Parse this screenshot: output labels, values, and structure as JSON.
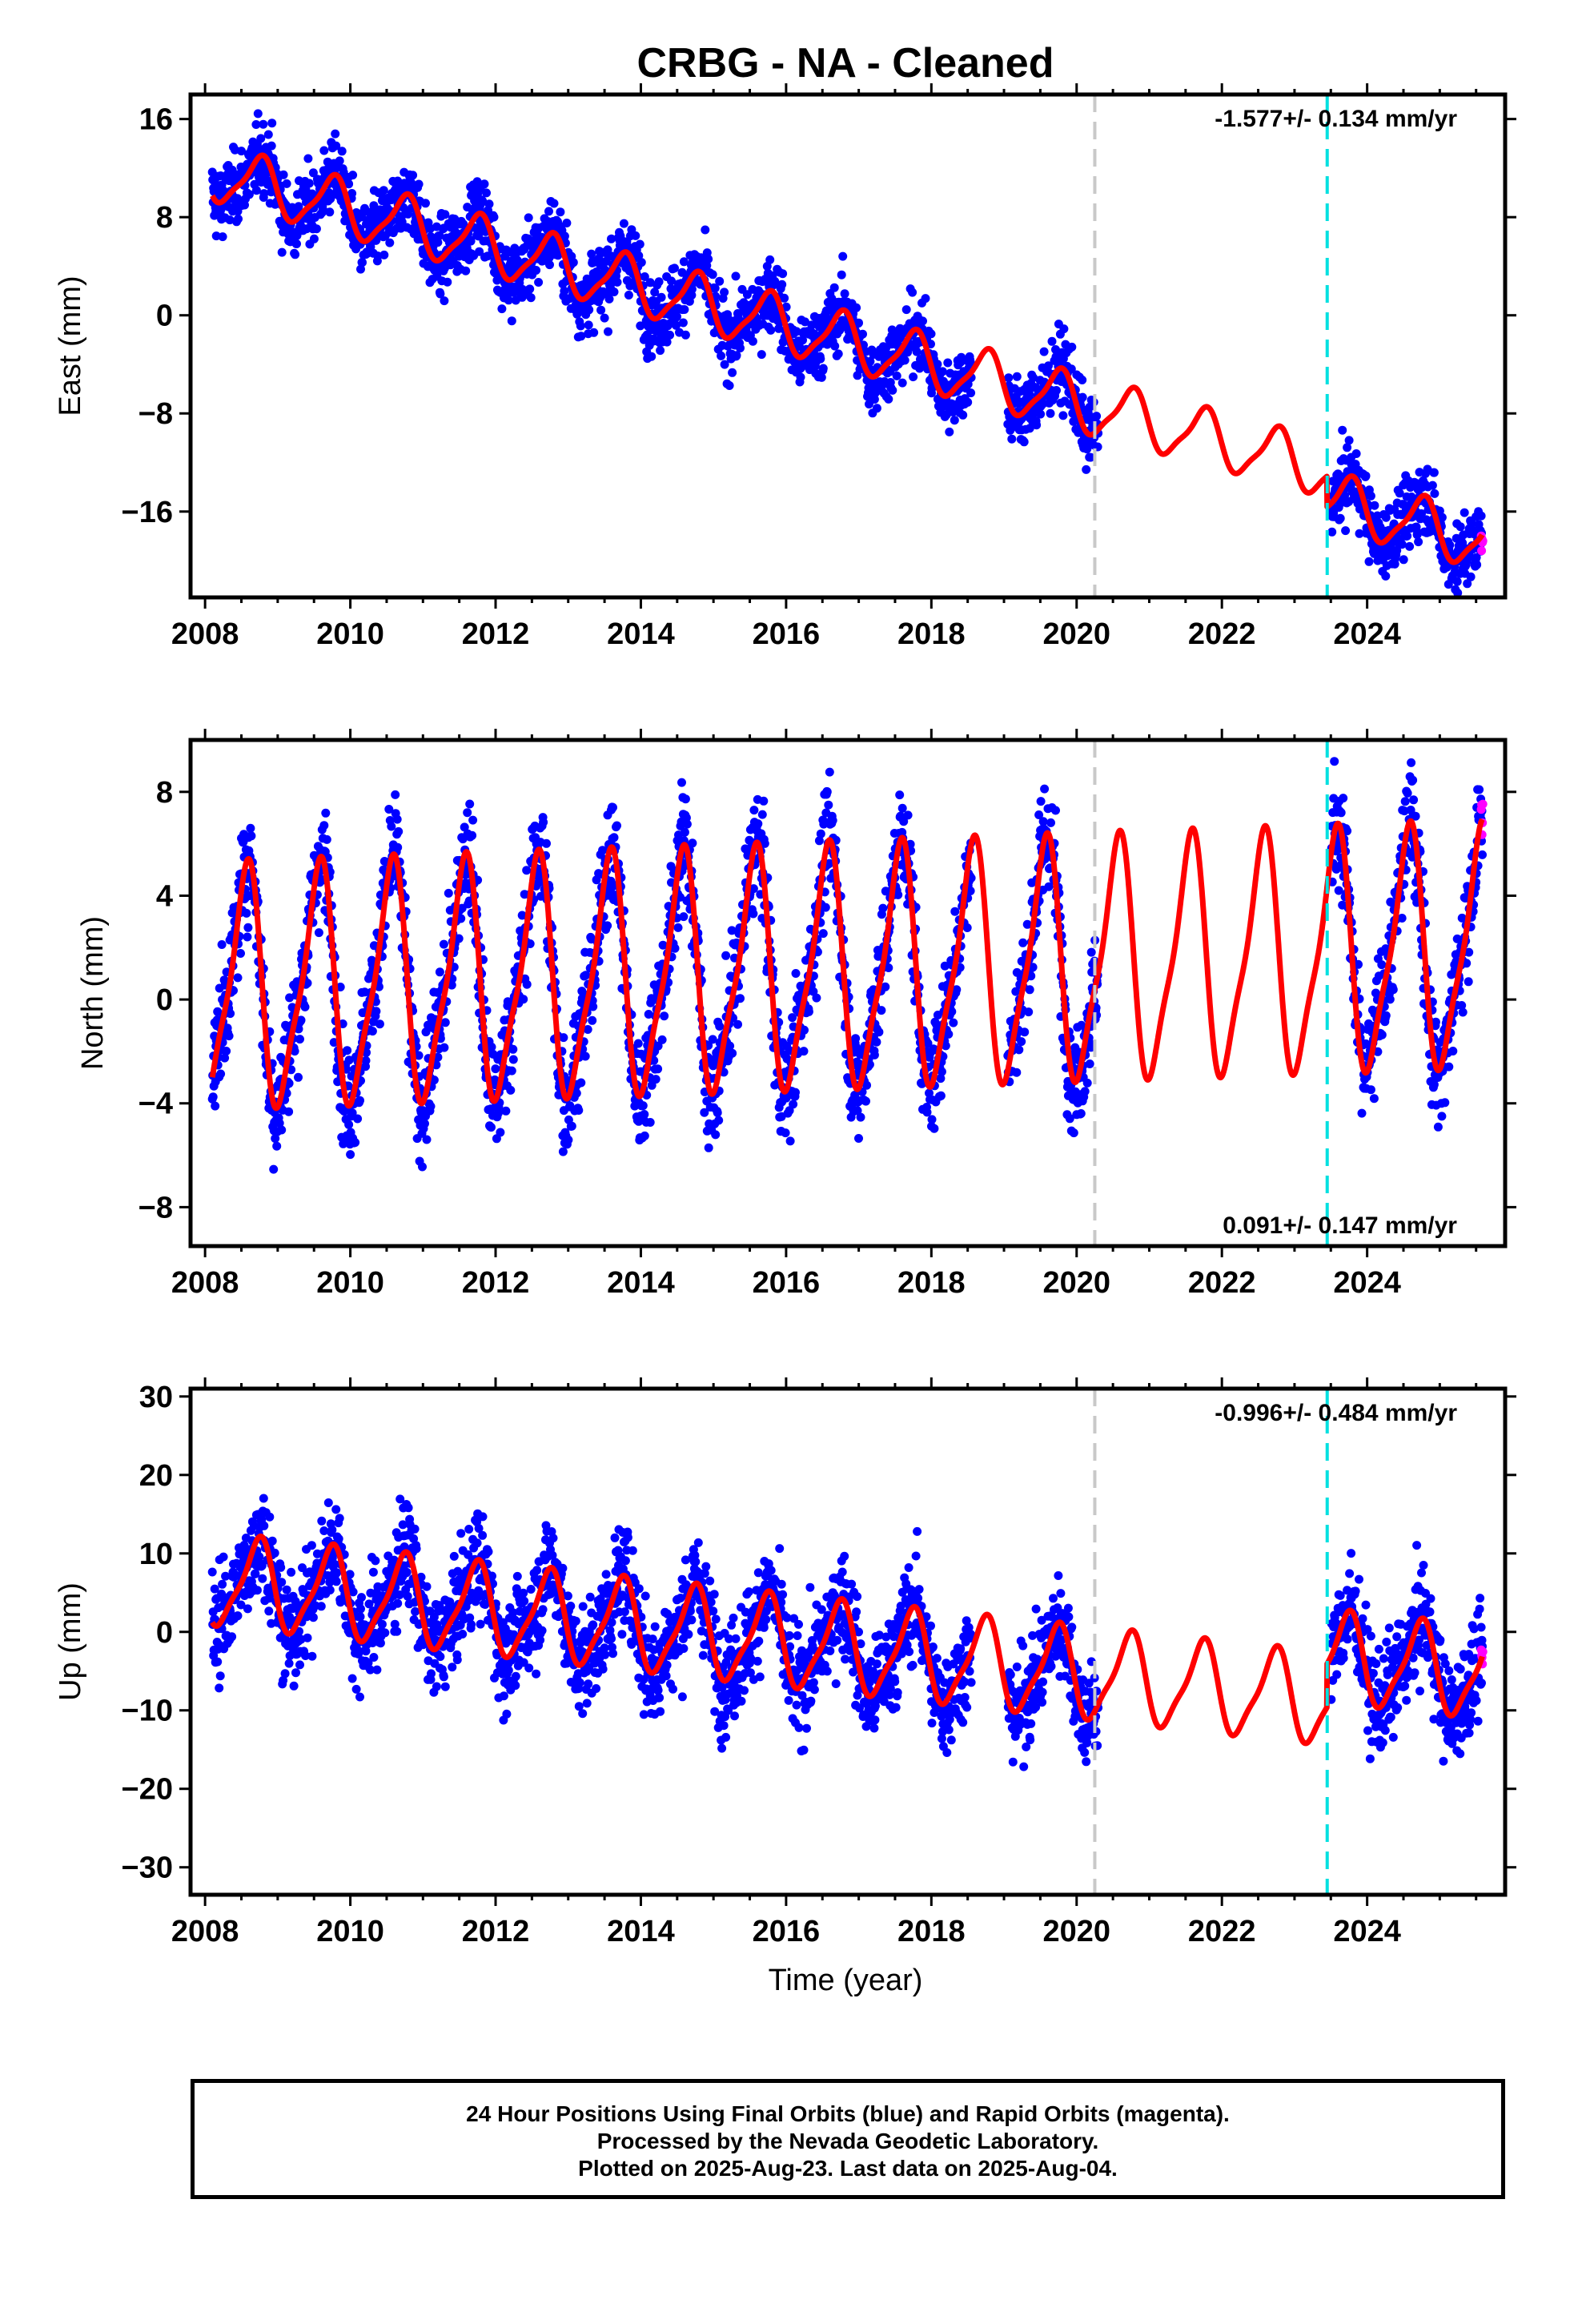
{
  "chart_data": {
    "type": "scatter",
    "title": "CRBG  - NA - Cleaned",
    "xlabel": "Time (year)",
    "x_ticks": [
      "2008",
      "2010",
      "2012",
      "2014",
      "2016",
      "2018",
      "2020",
      "2022",
      "2024"
    ],
    "xlim": [
      2007.8,
      2025.9
    ],
    "colors": {
      "final_orbits": "#0000ff",
      "rapid_orbits": "#ff00ff",
      "model": "#ff0000",
      "equipment_change": "#c8c8c8",
      "earthquake": "#00e0e0"
    },
    "event_lines": [
      {
        "x": 2020.25,
        "style": "dashed",
        "color": "#c8c8c8"
      },
      {
        "x": 2023.45,
        "style": "dashed",
        "color": "#00e0e0"
      }
    ],
    "data_gaps": [
      [
        2018.55,
        2019.05
      ],
      [
        2020.3,
        2023.5
      ]
    ],
    "last_data": 2025.59,
    "panels": [
      {
        "name": "east",
        "ylabel": "East (mm)",
        "yticks": [
          "16",
          "8",
          "0",
          "-8",
          "-16"
        ],
        "ylim": [
          -23,
          18
        ],
        "rate_text": "-1.577+/- 0.134 mm/yr",
        "rate_position": "top-right",
        "model": {
          "offset_mm": 11.6,
          "rate_mm_yr": -1.577,
          "amplitude_mm": 2.2,
          "peak_phase": 0.75,
          "step_year": 2023.45,
          "step_mm": -2.5
        },
        "scatter_sd_mm": 1.6,
        "series": [
          {
            "name": "Final Orbits",
            "color": "#0000ff"
          },
          {
            "name": "Rapid Orbits",
            "color": "#ff00ff"
          },
          {
            "name": "Model",
            "color": "#ff0000"
          }
        ]
      },
      {
        "name": "north",
        "ylabel": "North (mm)",
        "yticks": [
          "8",
          "4",
          "0",
          "-4",
          "-8"
        ],
        "ylim": [
          -9.5,
          10
        ],
        "rate_text": "0.091+/- 0.147 mm/yr",
        "rate_position": "bottom-right",
        "model": {
          "offset_mm": 0.3,
          "rate_mm_yr": 0.091,
          "amplitude_mm": 4.4,
          "peak_phase": 0.55,
          "step_year": 2023.45,
          "step_mm": 0
        },
        "scatter_sd_mm": 1.2,
        "series": [
          {
            "name": "Final Orbits",
            "color": "#0000ff"
          },
          {
            "name": "Rapid Orbits",
            "color": "#ff00ff"
          },
          {
            "name": "Model",
            "color": "#ff0000"
          }
        ]
      },
      {
        "name": "up",
        "ylabel": "Up (mm)",
        "yticks": [
          "30",
          "20",
          "10",
          "0",
          "-10",
          "-20",
          "-30"
        ],
        "ylim": [
          -33.5,
          31
        ],
        "rate_text": "-0.996+/- 0.484 mm/yr",
        "rate_position": "top-right",
        "model": {
          "offset_mm": 6.5,
          "rate_mm_yr": -0.996,
          "amplitude_mm": 5.5,
          "peak_phase": 0.72,
          "step_year": 2023.45,
          "step_mm": 5.5
        },
        "scatter_sd_mm": 3.6,
        "series": [
          {
            "name": "Final Orbits",
            "color": "#0000ff"
          },
          {
            "name": "Rapid Orbits",
            "color": "#ff00ff"
          },
          {
            "name": "Model",
            "color": "#ff0000"
          }
        ]
      }
    ]
  },
  "footer": {
    "line1": "24 Hour Positions Using Final Orbits (blue) and Rapid Orbits (magenta).",
    "line2": "Processed by the Nevada Geodetic Laboratory.",
    "line3": "Plotted on 2025-Aug-23. Last data on 2025-Aug-04."
  }
}
